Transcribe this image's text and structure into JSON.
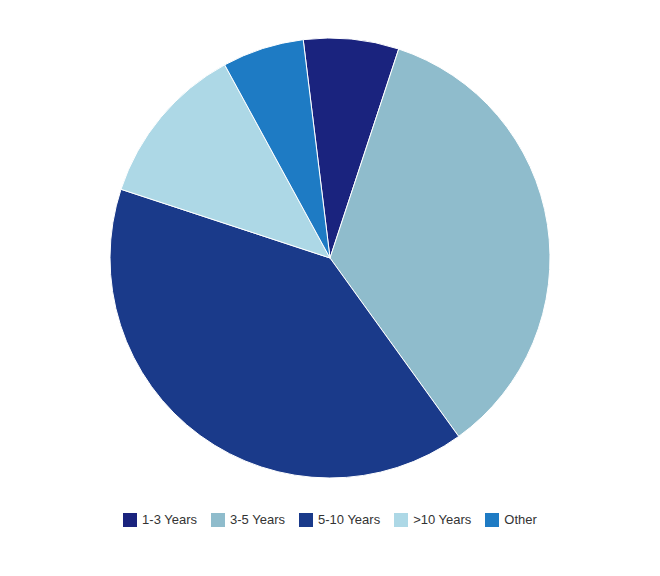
{
  "chart_data": {
    "type": "pie",
    "categories": [
      "1-3 Years",
      "3-5 Years",
      "5-10 Years",
      ">10 Years",
      "Other"
    ],
    "values": [
      7,
      35,
      40,
      12,
      6
    ],
    "colors": [
      "#1a237e",
      "#8fbccc",
      "#1a3a8a",
      "#add8e6",
      "#1e7bc4"
    ],
    "legend": "bottom"
  }
}
